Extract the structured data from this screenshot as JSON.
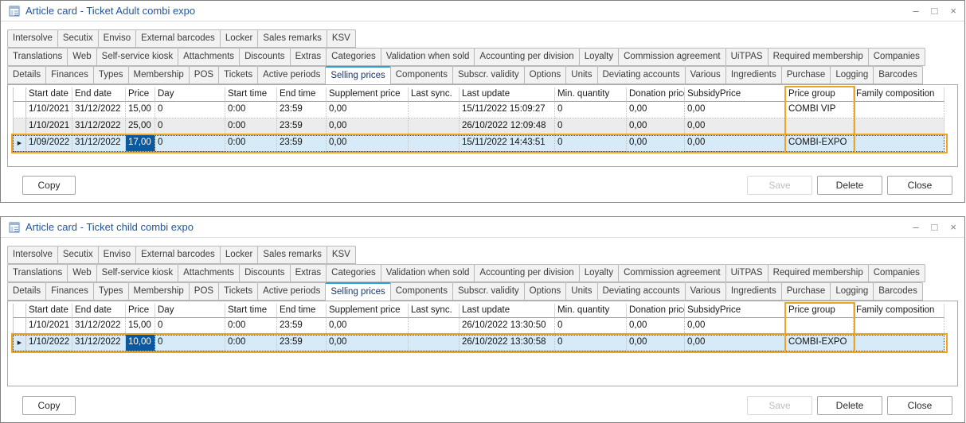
{
  "colors": {
    "title_text": "#2155A4",
    "tab_selected_accent": "#2A9FD8",
    "selected_cell_bg": "#0B5AA0",
    "selected_row_bg": "#D6EAF8",
    "highlight_orange": "#EFA521"
  },
  "icons": {
    "titlebar": "article-card-icon",
    "minimize": "–",
    "maximize": "□",
    "close": "×",
    "row_indicator": "▶"
  },
  "tabs": {
    "rows": [
      [
        "Intersolve",
        "Secutix",
        "Enviso",
        "External barcodes",
        "Locker",
        "Sales remarks",
        "KSV"
      ],
      [
        "Translations",
        "Web",
        "Self-service kiosk",
        "Attachments",
        "Discounts",
        "Extras",
        "Categories",
        "Validation when sold",
        "Accounting per division",
        "Loyalty",
        "Commission agreement",
        "UiTPAS",
        "Required membership",
        "Companies"
      ],
      [
        "Details",
        "Finances",
        "Types",
        "Membership",
        "POS",
        "Tickets",
        "Active periods",
        "Selling prices",
        "Components",
        "Subscr. validity",
        "Options",
        "Units",
        "Deviating accounts",
        "Various",
        "Ingredients",
        "Purchase",
        "Logging",
        "Barcodes"
      ]
    ],
    "selected": "Selling prices"
  },
  "grid": {
    "columns": [
      "",
      "Start date",
      "End date",
      "Price",
      "Day",
      "Start time",
      "End time",
      "Supplement price",
      "Last sync.",
      "Last update",
      "Min. quantity",
      "Donation price",
      "SubsidyPrice",
      "Price group",
      "Family composition"
    ],
    "highlighted_column": "Price group"
  },
  "buttons": {
    "copy": "Copy",
    "save": "Save",
    "delete": "Delete",
    "close": "Close"
  },
  "windows": [
    {
      "title": "Article card - Ticket Adult combi expo",
      "rows": [
        [
          "1/10/2021",
          "31/12/2022",
          "15,00",
          "0",
          "0:00",
          "23:59",
          "0,00",
          "",
          "15/11/2022 15:09:27",
          "0",
          "0,00",
          "0,00",
          "COMBI VIP",
          ""
        ],
        [
          "1/10/2021",
          "31/12/2022",
          "25,00",
          "0",
          "0:00",
          "23:59",
          "0,00",
          "",
          "26/10/2022 12:09:48",
          "0",
          "0,00",
          "0,00",
          "",
          ""
        ],
        [
          "1/09/2022",
          "31/12/2022",
          "17,00",
          "0",
          "0:00",
          "23:59",
          "0,00",
          "",
          "15/11/2022 14:43:51",
          "0",
          "0,00",
          "0,00",
          "COMBI-EXPO",
          ""
        ]
      ],
      "selected_row": 2,
      "selected_cell": 2
    },
    {
      "title": "Article card - Ticket child combi expo",
      "rows": [
        [
          "1/10/2021",
          "31/12/2022",
          "15,00",
          "0",
          "0:00",
          "23:59",
          "0,00",
          "",
          "26/10/2022 13:30:50",
          "0",
          "0,00",
          "0,00",
          "",
          ""
        ],
        [
          "1/10/2022",
          "31/12/2022",
          "10,00",
          "0",
          "0:00",
          "23:59",
          "0,00",
          "",
          "26/10/2022 13:30:58",
          "0",
          "0,00",
          "0,00",
          "COMBI-EXPO",
          ""
        ]
      ],
      "selected_row": 1,
      "selected_cell": 2
    }
  ]
}
